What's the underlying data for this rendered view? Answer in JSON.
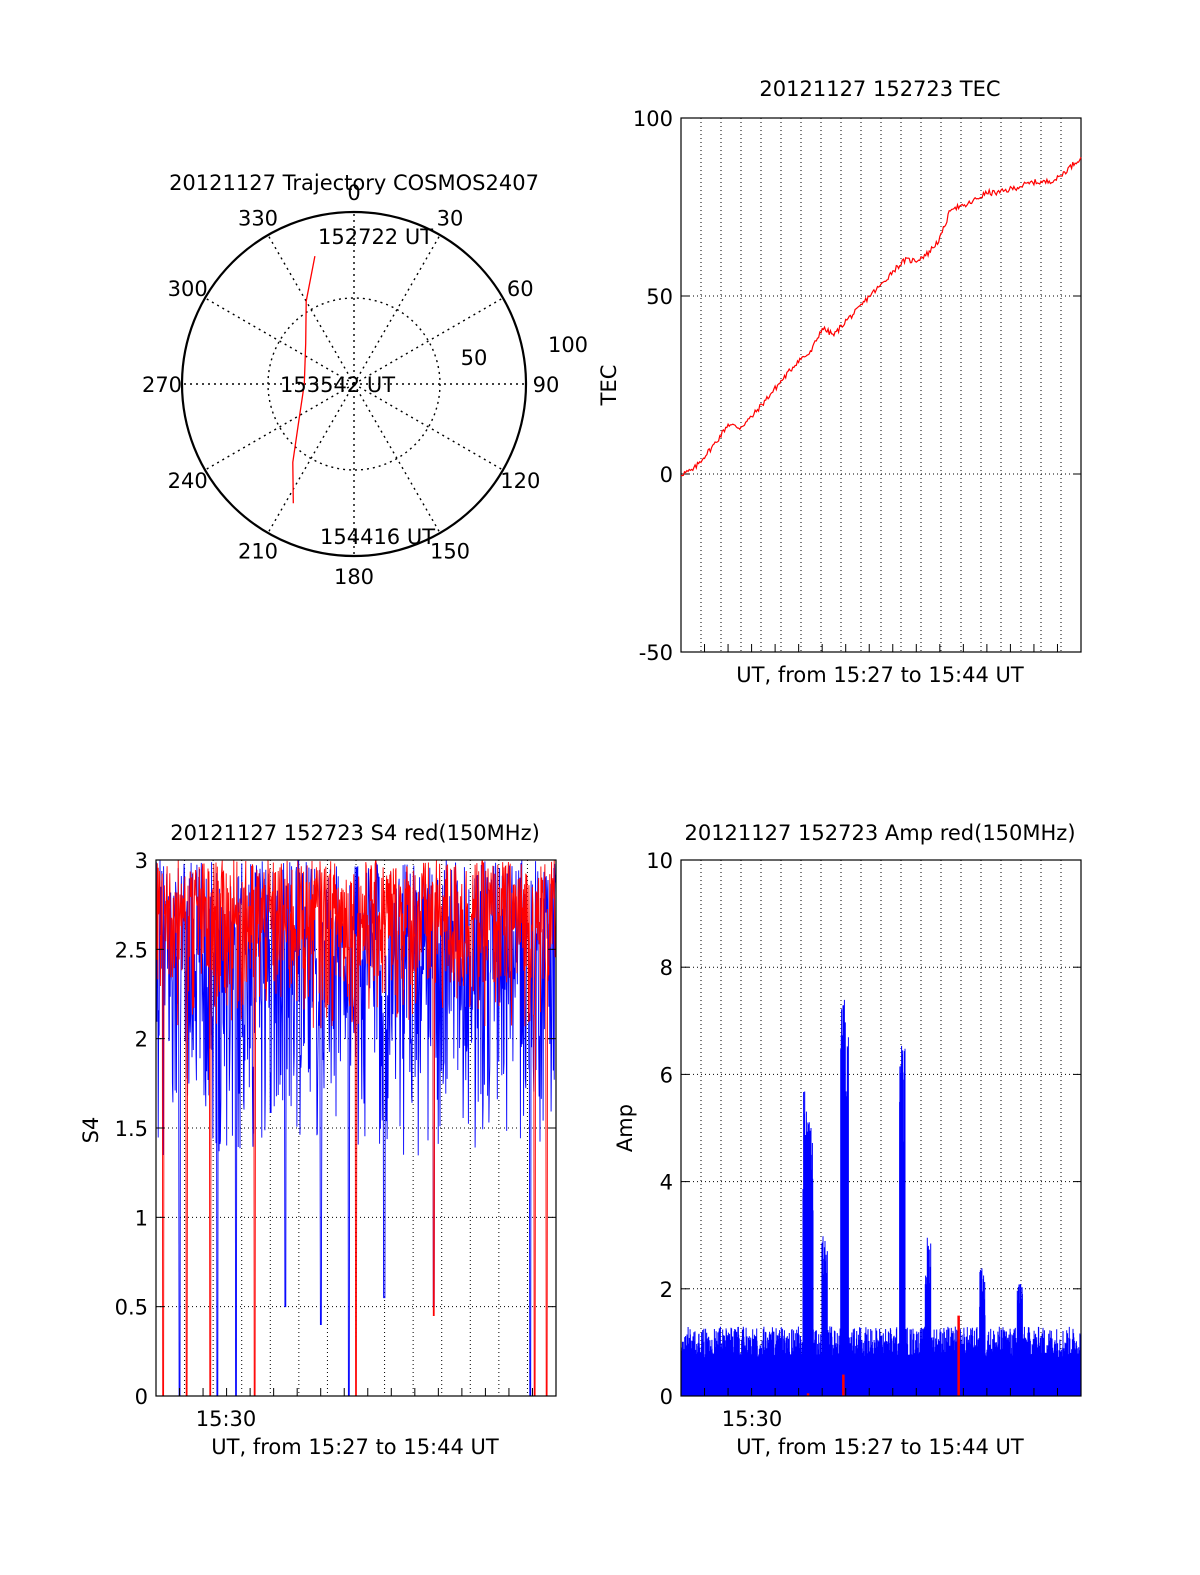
{
  "colors": {
    "series_red": "#ff0000",
    "series_blue": "#0000ff",
    "axis": "#000000",
    "grid": "#000000"
  },
  "chart_data": [
    {
      "type": "polar",
      "title": "20121127 Trajectory COSMOS2407",
      "angle_ticks": [
        "0",
        "30",
        "60",
        "90",
        "120",
        "150",
        "180",
        "210",
        "240",
        "270",
        "300",
        "330"
      ],
      "radial_ticks": [
        "50",
        "100"
      ],
      "grid": true,
      "series": [
        {
          "color": "#ff0000",
          "points": [
            {
              "az": 343,
              "el": 20
            },
            {
              "az": 330,
              "el": 40
            },
            {
              "az": 310,
              "el": 57
            },
            {
              "az": 270,
              "el": 64
            },
            {
              "az": 234,
              "el": 54
            },
            {
              "az": 218,
              "el": 38
            },
            {
              "az": 207,
              "el": 20
            }
          ]
        }
      ],
      "annotations": [
        {
          "text": "152722 UT",
          "az": 343,
          "el": 20
        },
        {
          "text": "153542 UT",
          "az": 270,
          "el": 64
        },
        {
          "text": "154416 UT",
          "az": 207,
          "el": 20
        }
      ]
    },
    {
      "type": "line",
      "title": "20121127 152723 TEC",
      "xlabel": "UT, from 15:27 to 15:44 UT",
      "ylabel": "TEC",
      "xlim": [
        0,
        17
      ],
      "ylim": [
        -50,
        100
      ],
      "yticks": [
        "-50",
        "0",
        "50",
        "100"
      ],
      "grid": true,
      "series": [
        {
          "color": "#ff0000",
          "x": [
            0,
            0.5,
            1,
            1.5,
            2,
            2.5,
            3,
            3.5,
            4,
            4.5,
            5,
            5.5,
            6,
            6.5,
            7,
            7.5,
            8,
            8.5,
            9,
            9.5,
            10,
            10.5,
            11,
            11.5,
            12,
            12.5,
            13,
            13.5,
            14,
            14.5,
            15,
            15.5,
            16,
            16.5,
            17
          ],
          "y": [
            0,
            1,
            5,
            9,
            14,
            13,
            16,
            20,
            24,
            28,
            32,
            34,
            41,
            39,
            43,
            46,
            50,
            53,
            57,
            60,
            60,
            62,
            66,
            75,
            75,
            77,
            79,
            79,
            80,
            81,
            82,
            82,
            83,
            86,
            89
          ]
        }
      ]
    },
    {
      "type": "line",
      "title": "20121127 152723 S4 red(150MHz)",
      "xlabel": "UT, from 15:27 to 15:44 UT",
      "ylabel": "S4",
      "xlim": [
        0,
        17
      ],
      "ylim": [
        0,
        3
      ],
      "yticks": [
        "0",
        "0.5",
        "1",
        "1.5",
        "2",
        "2.5",
        "3"
      ],
      "xtick_labels": [
        {
          "x": 3,
          "label": "15:30"
        }
      ],
      "grid": true,
      "series": [
        {
          "color": "#0000ff",
          "kind": "dense_noisy",
          "floor": 1.3,
          "ceiling": 3,
          "dips": [
            {
              "x": 1.0,
              "y": 0
            },
            {
              "x": 2.6,
              "y": 0
            },
            {
              "x": 3.4,
              "y": 0
            },
            {
              "x": 5.5,
              "y": 0.5
            },
            {
              "x": 7.0,
              "y": 0.4
            },
            {
              "x": 8.2,
              "y": 0
            },
            {
              "x": 9.7,
              "y": 0.55
            },
            {
              "x": 11.8,
              "y": 0.5
            },
            {
              "x": 15.9,
              "y": 0
            }
          ]
        },
        {
          "color": "#ff0000",
          "kind": "dense_noisy",
          "floor": 2.0,
          "ceiling": 3,
          "dips": [
            {
              "x": 0.3,
              "y": 0
            },
            {
              "x": 1.3,
              "y": 0
            },
            {
              "x": 2.3,
              "y": 0
            },
            {
              "x": 4.2,
              "y": 0
            },
            {
              "x": 8.5,
              "y": 0
            },
            {
              "x": 11.8,
              "y": 0.45
            },
            {
              "x": 16.1,
              "y": 0
            },
            {
              "x": 16.6,
              "y": 0
            }
          ]
        }
      ]
    },
    {
      "type": "line",
      "title": "20121127 152723 Amp red(150MHz)",
      "xlabel": "UT, from 15:27 to 15:44 UT",
      "ylabel": "Amp",
      "xlim": [
        0,
        17
      ],
      "ylim": [
        0,
        10
      ],
      "yticks": [
        "0",
        "2",
        "4",
        "6",
        "8",
        "10"
      ],
      "xtick_labels": [
        {
          "x": 3,
          "label": "15:30"
        }
      ],
      "grid": true,
      "series": [
        {
          "color": "#0000ff",
          "kind": "dense_noisy",
          "floor": 0,
          "ceiling": 1.3,
          "spikes": [
            {
              "x": 5.3,
              "y": 5.7
            },
            {
              "x": 5.5,
              "y": 5.2
            },
            {
              "x": 6.1,
              "y": 3.1
            },
            {
              "x": 6.9,
              "y": 7.4
            },
            {
              "x": 7.0,
              "y": 7.1
            },
            {
              "x": 9.4,
              "y": 6.7
            },
            {
              "x": 10.5,
              "y": 3.0
            },
            {
              "x": 12.8,
              "y": 2.4
            },
            {
              "x": 14.4,
              "y": 2.2
            }
          ]
        },
        {
          "color": "#ff0000",
          "kind": "sparse",
          "spikes": [
            {
              "x": 6.9,
              "y": 0.4
            },
            {
              "x": 5.4,
              "y": 0.05
            },
            {
              "x": 11.8,
              "y": 1.5
            }
          ]
        }
      ]
    }
  ]
}
